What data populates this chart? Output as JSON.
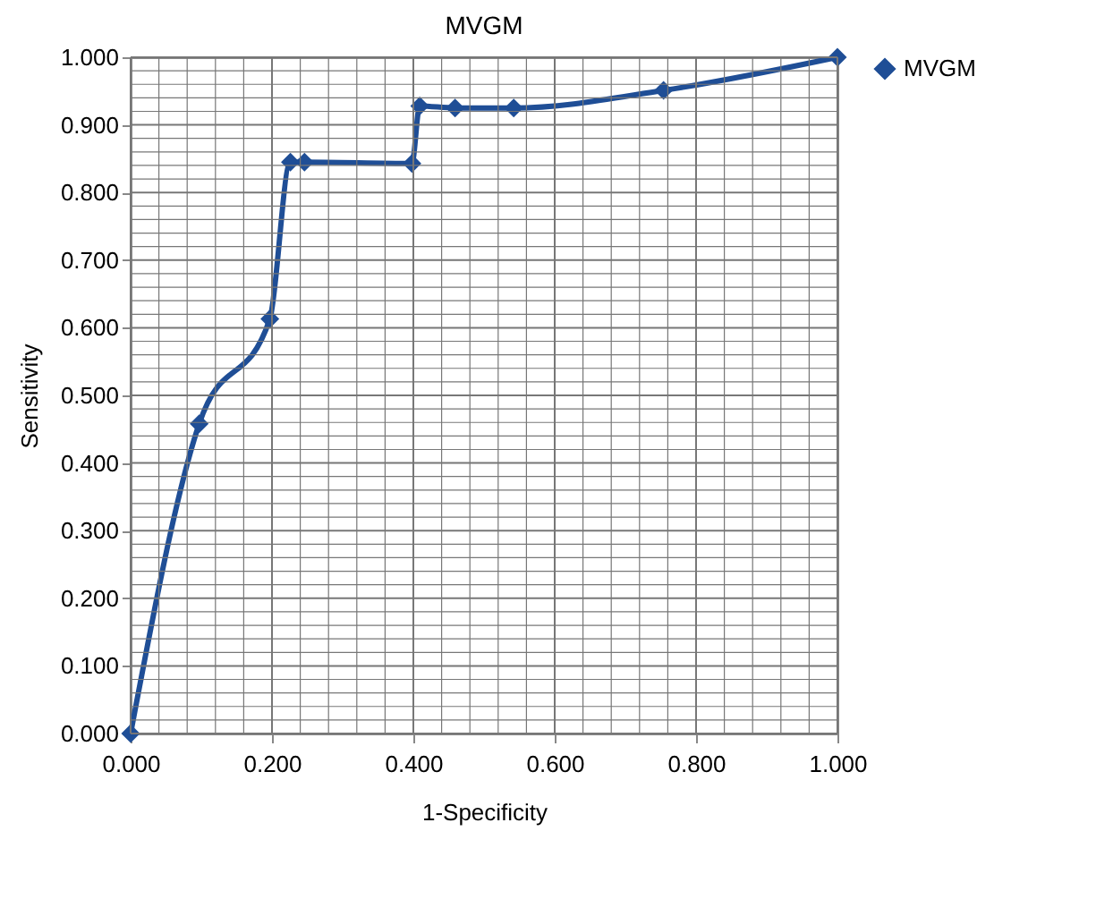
{
  "chart_data": {
    "type": "line",
    "title": "MVGM",
    "xlabel": "1-Specificity",
    "ylabel": "Sensitivity",
    "x": [
      0,
      0.097,
      0.197,
      0.226,
      0.246,
      0.398,
      0.409,
      0.459,
      0.542,
      0.754,
      1
    ],
    "series": [
      {
        "name": "MVGM",
        "color": "#1f4e96",
        "values": [
          0,
          0.458,
          0.613,
          0.845,
          0.845,
          0.843,
          0.928,
          0.925,
          0.925,
          0.951,
          1
        ]
      }
    ],
    "xlim": [
      0,
      1
    ],
    "ylim": [
      0,
      1
    ],
    "xticks": [
      {
        "value": 0,
        "label": "0.000"
      },
      {
        "value": 0.2,
        "label": "0.200"
      },
      {
        "value": 0.4,
        "label": "0.400"
      },
      {
        "value": 0.6,
        "label": "0.600"
      },
      {
        "value": 0.8,
        "label": "0.800"
      },
      {
        "value": 1,
        "label": "1.000"
      }
    ],
    "yticks": [
      {
        "value": 0,
        "label": "0.000"
      },
      {
        "value": 0.1,
        "label": "0.100"
      },
      {
        "value": 0.2,
        "label": "0.200"
      },
      {
        "value": 0.3,
        "label": "0.300"
      },
      {
        "value": 0.4,
        "label": "0.400"
      },
      {
        "value": 0.5,
        "label": "0.500"
      },
      {
        "value": 0.6,
        "label": "0.600"
      },
      {
        "value": 0.7,
        "label": "0.700"
      },
      {
        "value": 0.8,
        "label": "0.800"
      },
      {
        "value": 0.9,
        "label": "0.900"
      },
      {
        "value": 1,
        "label": "1.000"
      }
    ],
    "grid": true,
    "legend": "right",
    "marker": "diamond",
    "line_style": "solid"
  }
}
